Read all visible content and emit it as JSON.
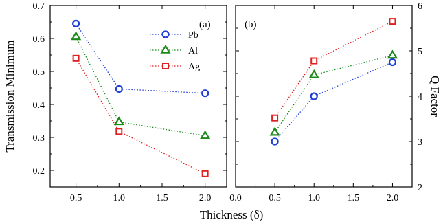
{
  "chart_data": [
    {
      "panel": "(a)",
      "type": "line",
      "x": [
        0.5,
        1.0,
        2.0
      ],
      "xlabel": "",
      "ylabel": "Transmission Minimum",
      "xlim": [
        0.2,
        2.25
      ],
      "ylim": [
        0.15,
        0.7
      ],
      "xticks": [
        0.5,
        1.0,
        1.5,
        2.0
      ],
      "xtick_labels": [
        "0.5",
        "1.0",
        "1.5",
        "2.0"
      ],
      "yticks": [
        0.2,
        0.3,
        0.4,
        0.5,
        0.6,
        0.7
      ],
      "ytick_labels": [
        "0.2",
        "0.3",
        "0.4",
        "0.5",
        "0.6",
        "0.7"
      ],
      "grid": false,
      "legend_position": "top-right",
      "series": [
        {
          "name": "Pb",
          "values": [
            0.645,
            0.447,
            0.434
          ],
          "color": "#1f3fd8",
          "marker": "circle"
        },
        {
          "name": "Al",
          "values": [
            0.605,
            0.347,
            0.305
          ],
          "color": "#1a8a1a",
          "marker": "triangle"
        },
        {
          "name": "Ag",
          "values": [
            0.54,
            0.318,
            0.19
          ],
          "color": "#e02020",
          "marker": "square"
        }
      ]
    },
    {
      "panel": "(b)",
      "type": "line",
      "x": [
        0.5,
        1.0,
        2.0
      ],
      "xlabel": "",
      "ylabel": "Q Factor",
      "xlim": [
        0.0,
        2.25
      ],
      "ylim": [
        2,
        6
      ],
      "xticks": [
        0.0,
        0.5,
        1.0,
        1.5,
        2.0
      ],
      "xtick_labels": [
        "0.0",
        "0.5",
        "1.0",
        "1.5",
        "2.0"
      ],
      "yticks": [
        2,
        3,
        4,
        5,
        6
      ],
      "ytick_labels": [
        "2",
        "3",
        "4",
        "5",
        "6"
      ],
      "grid": false,
      "series": [
        {
          "name": "Pb",
          "values": [
            3.0,
            4.0,
            4.75
          ],
          "color": "#1f3fd8",
          "marker": "circle"
        },
        {
          "name": "Al",
          "values": [
            3.2,
            4.47,
            4.9
          ],
          "color": "#1a8a1a",
          "marker": "triangle"
        },
        {
          "name": "Ag",
          "values": [
            3.52,
            4.78,
            5.65
          ],
          "color": "#e02020",
          "marker": "square"
        }
      ]
    }
  ],
  "shared_xlabel": "Thickness (δ)"
}
